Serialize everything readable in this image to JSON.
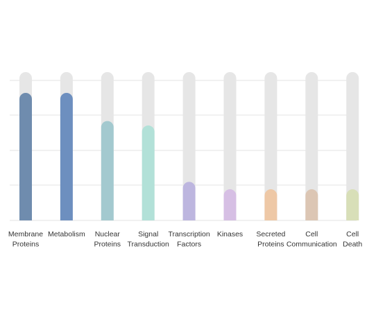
{
  "chart_data": {
    "type": "bar",
    "categories": [
      [
        "Membrane",
        "Proteins"
      ],
      [
        "Metabolism"
      ],
      [
        "Nuclear",
        "Proteins"
      ],
      [
        "Signal",
        "Transduction"
      ],
      [
        "Transcription",
        "Factors"
      ],
      [
        "Kinases"
      ],
      [
        "Secreted",
        "Proteins"
      ],
      [
        "Cell",
        "Communication"
      ],
      [
        "Cell",
        "Death"
      ]
    ],
    "values": [
      86,
      86,
      67,
      64,
      26,
      21,
      21,
      21,
      21
    ],
    "ylim": [
      0,
      100
    ],
    "gridlines": [
      0,
      20,
      40,
      60,
      80
    ],
    "grid": true,
    "track_color": "#e6e6e6",
    "grid_color": "#e3e3e3",
    "colors": [
      "#6f8cae",
      "#6d8fbf",
      "#a3c9cf",
      "#b2e1d8",
      "#bdb6df",
      "#d6bfe4",
      "#eec8a6",
      "#dcc6b4",
      "#d8dfb8"
    ]
  }
}
